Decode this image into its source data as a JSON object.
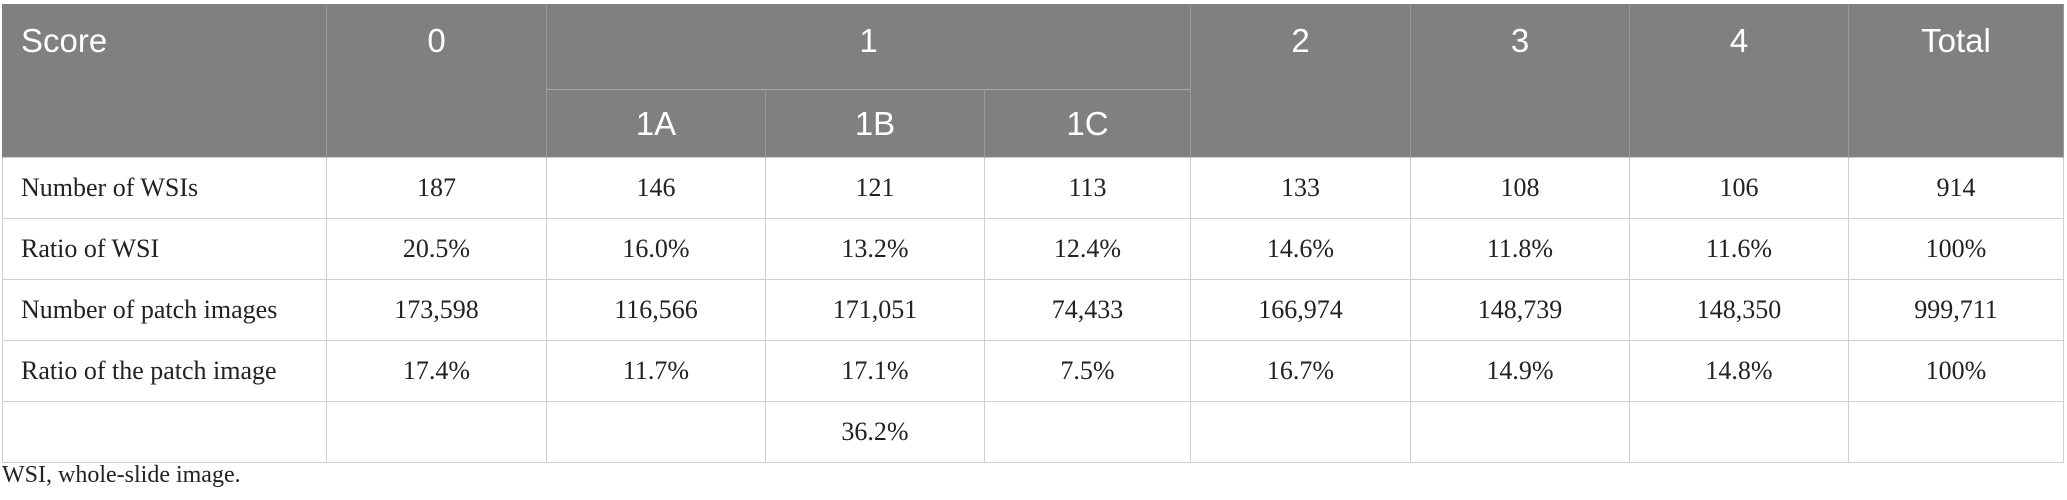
{
  "header": {
    "row1": [
      "Score",
      "0",
      "1",
      "2",
      "3",
      "4",
      "Total"
    ],
    "row2": [
      "1A",
      "1B",
      "1C"
    ]
  },
  "rows": [
    {
      "label": "Number of WSIs",
      "cells": [
        "187",
        "146",
        "121",
        "113",
        "133",
        "108",
        "106",
        "914"
      ]
    },
    {
      "label": "Ratio of WSI",
      "cells": [
        "20.5%",
        "16.0%",
        "13.2%",
        "12.4%",
        "14.6%",
        "11.8%",
        "11.6%",
        "100%"
      ]
    },
    {
      "label": "Number of patch images",
      "cells": [
        "173,598",
        "116,566",
        "171,051",
        "74,433",
        "166,974",
        "148,739",
        "148,350",
        "999,711"
      ]
    },
    {
      "label": "Ratio of the patch image",
      "cells": [
        "17.4%",
        "11.7%",
        "17.1%",
        "7.5%",
        "16.7%",
        "14.9%",
        "14.8%",
        "100%"
      ]
    },
    {
      "label": "",
      "cells": [
        "",
        "",
        "36.2%",
        "",
        "",
        "",
        "",
        ""
      ]
    }
  ],
  "footnote": "WSI, whole-slide image."
}
